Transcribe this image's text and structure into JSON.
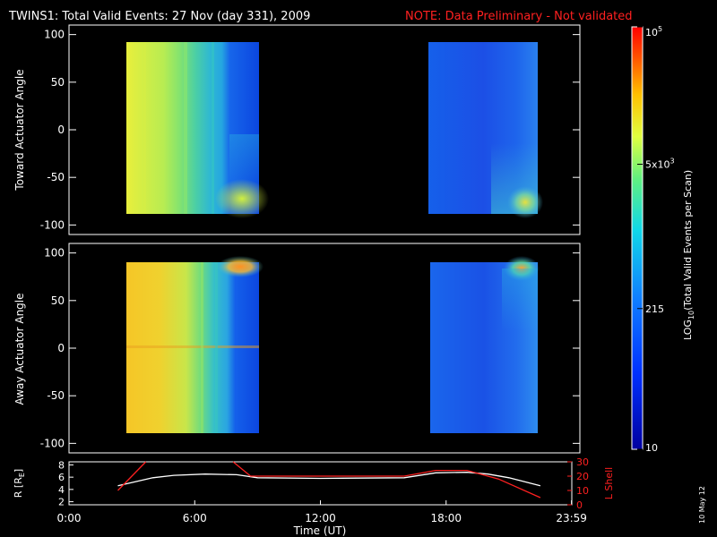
{
  "header": {
    "title": "TWINS1: Total Valid Events: 27 Nov (day 331), 2009",
    "note": "NOTE: Data Preliminary - Not validated"
  },
  "side_stamp": "10 May 12",
  "chart_data": [
    {
      "type": "heatmap",
      "ylabel": "Toward Actuator Angle",
      "ylim": [
        -110,
        110
      ],
      "yticks": [
        "100",
        "50",
        "0",
        "-50",
        "-100"
      ],
      "blocks": [
        {
          "x_start": "02:25",
          "x_end": "08:50",
          "y_range": [
            -88,
            90
          ],
          "dominant_level": "yellow-green to cyan, blue near end"
        },
        {
          "x_start": "17:00",
          "x_end": "22:30",
          "y_range": [
            -88,
            90
          ],
          "dominant_level": "blue, cyan at lower right"
        }
      ]
    },
    {
      "type": "heatmap",
      "ylabel": "Away Actuator Angle",
      "ylim": [
        -110,
        110
      ],
      "yticks": [
        "100",
        "50",
        "0",
        "-50",
        "-100"
      ],
      "blocks": [
        {
          "x_start": "02:25",
          "x_end": "08:50",
          "y_range": [
            -88,
            90
          ],
          "dominant_level": "yellow-orange to cyan, blue near end"
        },
        {
          "x_start": "17:00",
          "x_end": "22:30",
          "y_range": [
            -88,
            90
          ],
          "dominant_level": "blue, cyan-orange at upper right"
        }
      ]
    },
    {
      "type": "line",
      "xlabel": "Time (UT)",
      "xticks": [
        "0:00",
        "6:00",
        "12:00",
        "18:00",
        "23:59"
      ],
      "ylabel_left": "R [R",
      "ylabel_left_sub": "E",
      "ylabel_left_end": "]",
      "yticks_left": [
        "8",
        "6",
        "4",
        "2"
      ],
      "ylim_left": [
        1.5,
        8.5
      ],
      "ylabel_right": "L Shell",
      "yticks_right": [
        "30",
        "20",
        "10",
        "0"
      ],
      "ylim_right": [
        0,
        30
      ],
      "series": [
        {
          "axis": "left",
          "color": "#ffffff",
          "x": [
            "02:20",
            "04:00",
            "05:00",
            "06:30",
            "08:00",
            "09:00",
            "12:00",
            "16:00",
            "17:30",
            "19:00",
            "20:00",
            "21:00",
            "22:30"
          ],
          "y": [
            4.6,
            5.9,
            6.3,
            6.5,
            6.4,
            5.9,
            5.8,
            5.9,
            6.7,
            6.8,
            6.5,
            5.9,
            4.6
          ]
        },
        {
          "axis": "right",
          "color": "#ff2020",
          "x": [
            "02:20",
            "03:40",
            null,
            "07:50",
            "08:40",
            "12:00",
            "16:00",
            "17:30",
            "19:00",
            "20:30",
            "22:30"
          ],
          "y": [
            10,
            30,
            null,
            30,
            20,
            20,
            20,
            24,
            24,
            18,
            5
          ]
        }
      ]
    }
  ],
  "colorbar": {
    "label": "LOG",
    "label_sub": "10",
    "label_rest": "(Total Valid Events per Scan)",
    "ticks": [
      {
        "label": "10",
        "value": 10
      },
      {
        "label": "215",
        "value": 215
      },
      {
        "label": "5x10",
        "sup": "3",
        "value": 5000
      },
      {
        "label": "10",
        "sup": "5",
        "value": 100000
      }
    ],
    "range": [
      10,
      100000
    ]
  }
}
